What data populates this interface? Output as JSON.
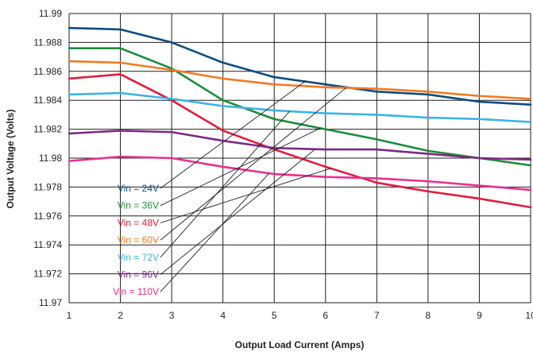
{
  "chart_data": {
    "type": "line",
    "title": "",
    "xlabel": "Output Load Current (Amps)",
    "ylabel": "Output Voltage (Volts)",
    "xlim": [
      1,
      10
    ],
    "ylim": [
      11.97,
      11.99
    ],
    "x_ticks": [
      "1",
      "2",
      "3",
      "4",
      "5",
      "6",
      "7",
      "8",
      "9",
      "10"
    ],
    "y_ticks": [
      "11.97",
      "11.972",
      "11.974",
      "11.976",
      "11.978",
      "11.98",
      "11.982",
      "11.984",
      "11.986",
      "11.988",
      "11.99"
    ],
    "grid": true,
    "legend_placement": "inside, lower-left, labels connected by leader lines",
    "x": [
      1,
      2,
      3,
      4,
      5,
      6,
      7,
      8,
      9,
      10
    ],
    "series": [
      {
        "name": "Vin = 24V",
        "color": "#0e4c7f",
        "values": [
          11.989,
          11.9889,
          11.988,
          11.9866,
          11.9856,
          11.9851,
          11.9846,
          11.9844,
          11.9839,
          11.9837
        ]
      },
      {
        "name": "Vin = 36V",
        "color": "#1c8c3c",
        "values": [
          11.9876,
          11.9876,
          11.9862,
          11.984,
          11.9827,
          11.982,
          11.9813,
          11.9805,
          11.98,
          11.9795
        ]
      },
      {
        "name": "Vin = 48V",
        "color": "#e21c3d",
        "values": [
          11.9855,
          11.9858,
          11.984,
          11.9819,
          11.9806,
          11.9794,
          11.9783,
          11.9777,
          11.9772,
          11.9766
        ]
      },
      {
        "name": "Vin = 60V",
        "color": "#f07b24",
        "values": [
          11.9867,
          11.9866,
          11.9861,
          11.9855,
          11.9851,
          11.9849,
          11.9848,
          11.9846,
          11.9843,
          11.9841
        ]
      },
      {
        "name": "Vin = 72V",
        "color": "#3cb4e6",
        "values": [
          11.9844,
          11.9845,
          11.9841,
          11.9836,
          11.9833,
          11.9831,
          11.983,
          11.9828,
          11.9827,
          11.9825
        ]
      },
      {
        "name": "Vin = 96V",
        "color": "#7b2b83",
        "values": [
          11.9817,
          11.9819,
          11.9818,
          11.9812,
          11.9807,
          11.9806,
          11.9806,
          11.9803,
          11.98,
          11.9799
        ]
      },
      {
        "name": "Vin = 110V",
        "color": "#e6318f",
        "values": [
          11.9798,
          11.9801,
          11.98,
          11.9794,
          11.9789,
          11.9787,
          11.9786,
          11.9784,
          11.9781,
          11.9778
        ]
      }
    ]
  }
}
